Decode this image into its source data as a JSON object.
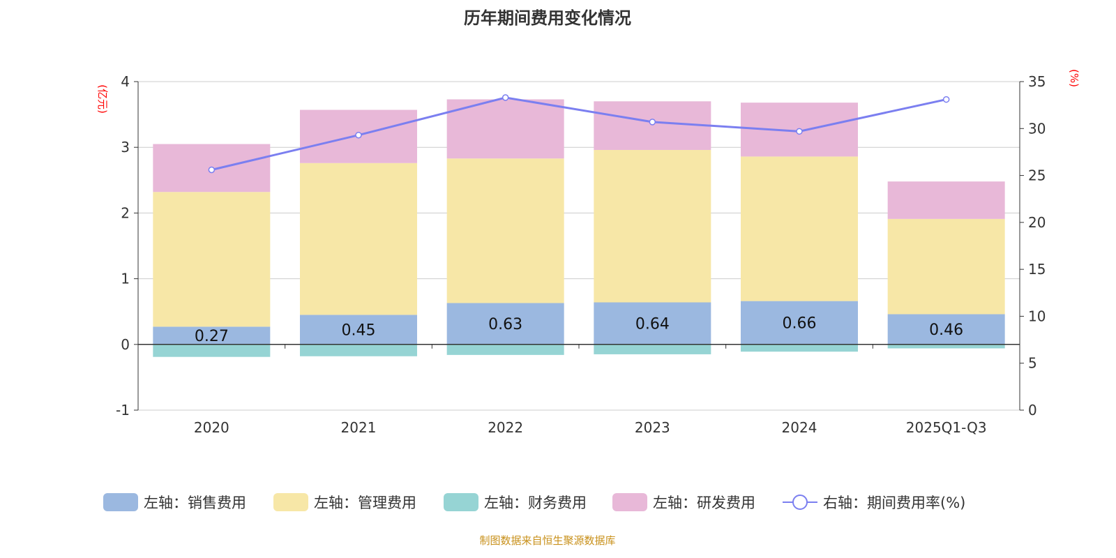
{
  "title": "历年期间费用变化情况",
  "footer": "制图数据来自恒生聚源数据库",
  "chart_data": {
    "type": "bar",
    "stacked": true,
    "categories": [
      "2020",
      "2021",
      "2022",
      "2023",
      "2024",
      "2025Q1-Q3"
    ],
    "left_axis": {
      "label": "(亿元)",
      "ylim": [
        -1,
        4
      ],
      "ticks": [
        "-1",
        "0",
        "1",
        "2",
        "3",
        "4"
      ]
    },
    "right_axis": {
      "label": "(%)",
      "ylim": [
        0,
        35
      ],
      "ticks": [
        "0",
        "5",
        "10",
        "15",
        "20",
        "25",
        "30",
        "35"
      ]
    },
    "series": [
      {
        "name": "左轴：销售费用",
        "color": "#9bb8e0",
        "values": [
          0.27,
          0.45,
          0.63,
          0.64,
          0.66,
          0.46
        ],
        "labels": [
          "0.27",
          "0.45",
          "0.63",
          "0.64",
          "0.66",
          "0.46"
        ]
      },
      {
        "name": "左轴：管理费用",
        "color": "#f7e7a7",
        "values": [
          2.05,
          2.31,
          2.2,
          2.32,
          2.2,
          1.45
        ]
      },
      {
        "name": "左轴：财务费用",
        "color": "#96d4d4",
        "values": [
          -0.19,
          -0.18,
          -0.16,
          -0.15,
          -0.11,
          -0.06
        ]
      },
      {
        "name": "左轴：研发费用",
        "color": "#e8b8d8",
        "values": [
          0.73,
          0.81,
          0.9,
          0.74,
          0.82,
          0.57
        ]
      },
      {
        "name": "右轴：期间费用率(%)",
        "type": "line",
        "color": "#7b7ff0",
        "values": [
          25.6,
          29.3,
          33.3,
          30.7,
          29.7,
          33.1
        ]
      }
    ]
  }
}
